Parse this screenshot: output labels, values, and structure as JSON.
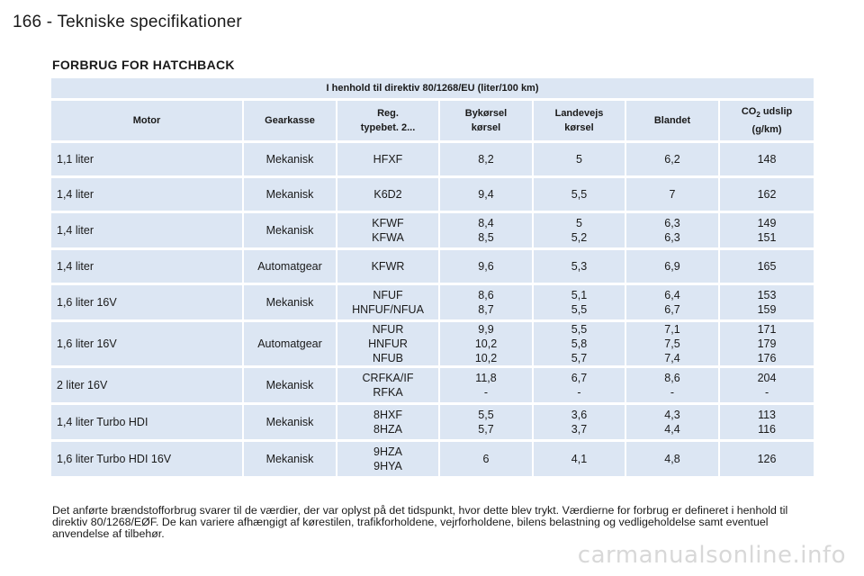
{
  "header": {
    "page_title": "166 - Tekniske specifikationer"
  },
  "section": {
    "title": "FORBRUG FOR HATCHBACK"
  },
  "table": {
    "caption": "I henhold til direktiv 80/1268/EU (liter/100 km)",
    "columns": {
      "motor": "Motor",
      "gearkasse": "Gearkasse",
      "reg": [
        "Reg.",
        "typebet. 2..."
      ],
      "by": [
        "Bykørsel",
        "kørsel"
      ],
      "land": [
        "Landevejs",
        "kørsel"
      ],
      "blandet": "Blandet",
      "co2_prefix": "CO",
      "co2_sub": "2",
      "co2_suffix": " udslip",
      "co2_unit": "(g/km)"
    },
    "rows": [
      {
        "motor": "1,1 liter",
        "gear": "Mekanisk",
        "reg": [
          "HFXF"
        ],
        "by": [
          "8,2"
        ],
        "land": [
          "5"
        ],
        "blandet": [
          "6,2"
        ],
        "co2": [
          "148"
        ]
      },
      {
        "motor": "1,4 liter",
        "gear": "Mekanisk",
        "reg": [
          "K6D2"
        ],
        "by": [
          "9,4"
        ],
        "land": [
          "5,5"
        ],
        "blandet": [
          "7"
        ],
        "co2": [
          "162"
        ]
      },
      {
        "motor": "1,4 liter",
        "gear": "Mekanisk",
        "reg": [
          "KFWF",
          "KFWA"
        ],
        "by": [
          "8,4",
          "8,5"
        ],
        "land": [
          "5",
          "5,2"
        ],
        "blandet": [
          "6,3",
          "6,3"
        ],
        "co2": [
          "149",
          "151"
        ]
      },
      {
        "motor": "1,4 liter",
        "gear": "Automatgear",
        "reg": [
          "KFWR"
        ],
        "by": [
          "9,6"
        ],
        "land": [
          "5,3"
        ],
        "blandet": [
          "6,9"
        ],
        "co2": [
          "165"
        ]
      },
      {
        "motor": "1,6 liter 16V",
        "gear": "Mekanisk",
        "reg": [
          "NFUF",
          "HNFUF/NFUA"
        ],
        "by": [
          "8,6",
          "8,7"
        ],
        "land": [
          "5,1",
          "5,5"
        ],
        "blandet": [
          "6,4",
          "6,7"
        ],
        "co2": [
          "153",
          "159"
        ]
      },
      {
        "motor": "1,6 liter 16V",
        "gear": "Automatgear",
        "reg": [
          "NFUR",
          "HNFUR",
          "NFUB"
        ],
        "by": [
          "9,9",
          "10,2",
          "10,2"
        ],
        "land": [
          "5,5",
          "5,8",
          "5,7"
        ],
        "blandet": [
          "7,1",
          "7,5",
          "7,4"
        ],
        "co2": [
          "171",
          "179",
          "176"
        ]
      },
      {
        "motor": "2 liter 16V",
        "gear": "Mekanisk",
        "reg": [
          "CRFKA/IF",
          "RFKA"
        ],
        "by": [
          "11,8",
          "-"
        ],
        "land": [
          "6,7",
          "-"
        ],
        "blandet": [
          "8,6",
          "-"
        ],
        "co2": [
          "204",
          "-"
        ]
      },
      {
        "motor": "1,4 liter Turbo HDI",
        "gear": "Mekanisk",
        "reg": [
          "8HXF",
          "8HZA"
        ],
        "by": [
          "5,5",
          "5,7"
        ],
        "land": [
          "3,6",
          "3,7"
        ],
        "blandet": [
          "4,3",
          "4,4"
        ],
        "co2": [
          "113",
          "116"
        ]
      },
      {
        "motor": "1,6 liter Turbo HDI 16V",
        "gear": "Mekanisk",
        "reg": [
          "9HZA",
          "9HYA"
        ],
        "by": [
          "6"
        ],
        "land": [
          "4,1"
        ],
        "blandet": [
          "4,8"
        ],
        "co2": [
          "126"
        ]
      }
    ]
  },
  "footnote": "Det anførte brændstofforbrug svarer til de værdier, der var oplyst på det tidspunkt, hvor dette blev trykt. Værdierne for forbrug er defineret i henhold til direktiv 80/1268/EØF. De kan variere afhængigt af kørestilen, trafikforholdene, vejrforholdene, bilens belastning og vedligeholdelse samt eventuel anvendelse af tilbehør.",
  "watermark": "carmanualsonline.info"
}
